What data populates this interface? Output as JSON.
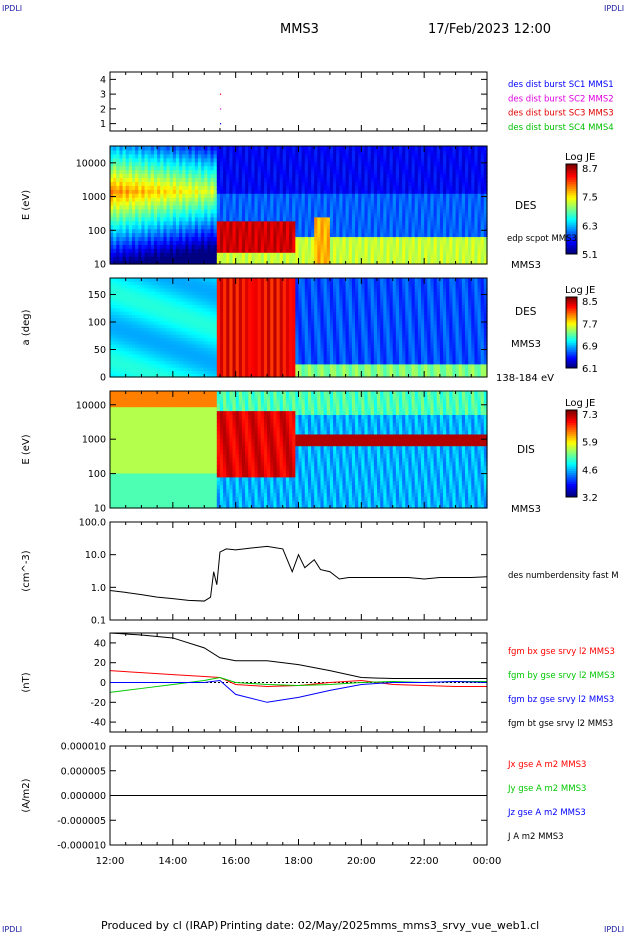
{
  "header": {
    "corner_label": "IPDLI",
    "spacecraft": "MMS3",
    "date_time": "17/Feb/2023 12:00"
  },
  "footer": {
    "produced_by": "Produced by cl (IRAP)",
    "printing_date": "Printing date: 02/May/2025",
    "script_name": "mms_mms3_srvy_vue_web1.cl"
  },
  "time_axis": {
    "ticks": [
      "12:00",
      "14:00",
      "16:00",
      "18:00",
      "20:00",
      "22:00",
      "00:00"
    ]
  },
  "colors": {
    "mms1": "#0000ff",
    "mms2": "#e000e0",
    "mms3": "#e00000",
    "mms4": "#00c000",
    "bx": "#ff0000",
    "by": "#00c800",
    "bz": "#0000ff",
    "bt": "#000000"
  },
  "chart_data": [
    {
      "type": "scatter",
      "id": "burst",
      "ylim": [
        0.5,
        4.5
      ],
      "yticks": [
        "1",
        "2",
        "3",
        "4"
      ],
      "legend": [
        "des dist burst SC1 MMS1",
        "des dist burst SC2 MMS2",
        "des dist burst SC3 MMS3",
        "des dist burst SC4 MMS4"
      ],
      "points": [
        {
          "t": 3.5,
          "sc": 3
        },
        {
          "t": 3.5,
          "sc": 2
        },
        {
          "t": 3.5,
          "sc": 1
        }
      ]
    },
    {
      "type": "heatmap",
      "id": "des_energy",
      "ylabel": "E (eV)",
      "yticks": [
        "10",
        "100",
        "1000",
        "10000"
      ],
      "scale": "log",
      "label": "DES",
      "sublabel": "MMS3",
      "overlay_label": "edp scpot MMS3",
      "colorbar": {
        "title": "Log JE",
        "ticks": [
          "8.7",
          "7.5",
          "6.3",
          "5.1"
        ]
      }
    },
    {
      "type": "heatmap",
      "id": "des_pitch",
      "ylabel": "a (deg)",
      "yticks": [
        "0",
        "50",
        "100",
        "150"
      ],
      "label": "DES",
      "sublabel": "MMS3",
      "energy_range": "138-184 eV",
      "colorbar": {
        "title": "Log JE",
        "ticks": [
          "8.5",
          "7.7",
          "6.9",
          "6.1"
        ]
      }
    },
    {
      "type": "heatmap",
      "id": "dis_energy",
      "ylabel": "E (eV)",
      "yticks": [
        "10",
        "100",
        "1000",
        "10000"
      ],
      "scale": "log",
      "label": "DIS",
      "sublabel": "MMS3",
      "colorbar": {
        "title": "Log JE",
        "ticks": [
          "7.3",
          "5.9",
          "4.6",
          "3.2"
        ]
      }
    },
    {
      "type": "line",
      "id": "density",
      "ylabel": "(cm^-3)",
      "yticks": [
        "0.1",
        "1.0",
        "10.0",
        "100.0"
      ],
      "scale": "log",
      "legend": [
        "des numberdensity fast M"
      ],
      "x": [
        0,
        0.5,
        1,
        1.5,
        2,
        2.5,
        3,
        3.2,
        3.3,
        3.4,
        3.5,
        3.7,
        4,
        4.5,
        5,
        5.5,
        5.8,
        6,
        6.2,
        6.5,
        6.7,
        7,
        7.3,
        7.6,
        8,
        8.5,
        9,
        9.5,
        10,
        10.5,
        11,
        11.5,
        12
      ],
      "y": [
        0.8,
        0.7,
        0.6,
        0.5,
        0.45,
        0.4,
        0.38,
        0.5,
        3.0,
        1.2,
        12.0,
        15.0,
        14.0,
        16.0,
        18.0,
        15.0,
        3.0,
        10.0,
        4.0,
        7.0,
        3.5,
        3.0,
        1.8,
        2.0,
        2.0,
        2.0,
        2.0,
        2.0,
        1.8,
        2.0,
        2.0,
        2.0,
        2.1
      ]
    },
    {
      "type": "line",
      "id": "bfield",
      "ylabel": "(nT)",
      "yticks": [
        "-40",
        "-20",
        "0",
        "20",
        "40"
      ],
      "ylim": [
        -50,
        50
      ],
      "legend": [
        "fgm bx gse srvy l2 MMS3",
        "fgm by gse srvy l2 MMS3",
        "fgm bz gse srvy l2 MMS3",
        "fgm bt gse srvy l2 MMS3"
      ],
      "x": [
        0,
        1,
        2,
        3,
        3.5,
        4,
        5,
        6,
        7,
        8,
        9,
        10,
        11,
        12
      ],
      "series": [
        {
          "values": [
            12,
            10,
            8,
            6,
            5,
            -2,
            -4,
            -3,
            0,
            2,
            -2,
            -3,
            -4,
            -4
          ]
        },
        {
          "values": [
            -10,
            -6,
            -2,
            2,
            5,
            0,
            -2,
            -3,
            -2,
            0,
            1,
            0,
            1,
            1
          ]
        },
        {
          "values": [
            0,
            0,
            0,
            0,
            2,
            -12,
            -20,
            -15,
            -8,
            -2,
            0,
            0,
            1,
            0
          ]
        },
        {
          "values": [
            50,
            48,
            45,
            35,
            25,
            22,
            22,
            18,
            12,
            5,
            4,
            4,
            4,
            4
          ]
        }
      ]
    },
    {
      "type": "line",
      "id": "current",
      "ylabel": "(A/m2)",
      "yticks": [
        "-0.000010",
        "-0.000005",
        "0.000000",
        "0.000005",
        "0.000010"
      ],
      "ylim": [
        -1e-05,
        1e-05
      ],
      "legend": [
        "Jx gse A m2 MMS3",
        "Jy gse A m2 MMS3",
        "Jz gse A m2 MMS3",
        "J A m2 MMS3"
      ],
      "x": [
        0,
        12
      ],
      "series": [
        {
          "values": [
            0,
            0
          ]
        },
        {
          "values": [
            0,
            0
          ]
        },
        {
          "values": [
            0,
            0
          ]
        },
        {
          "values": [
            0,
            0
          ]
        }
      ]
    }
  ]
}
